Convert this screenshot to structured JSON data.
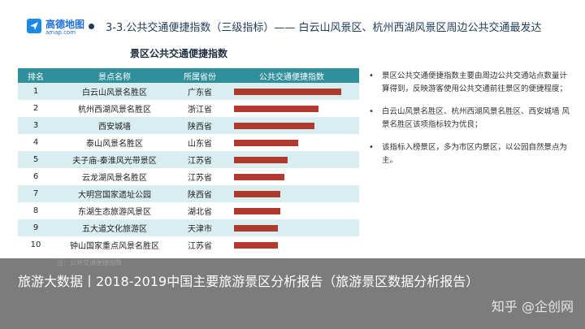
{
  "header": {
    "logo_name": "高德地图",
    "logo_domain": "amap.com",
    "title": "3-3.公共交通便捷指数（三级指标）—— 白云山风景区、杭州西湖风景区周边公共交通最发达"
  },
  "table": {
    "title": "景区公共交通便捷指数",
    "headers": [
      "排名",
      "景点名称",
      "所属省份",
      "公共交通便捷指数"
    ],
    "rows": [
      {
        "rank": "1",
        "name": "白云山风景名胜区",
        "province": "广东省",
        "value": 1.0
      },
      {
        "rank": "2",
        "name": "杭州西湖风景名胜区",
        "province": "浙江省",
        "value": 0.79
      },
      {
        "rank": "3",
        "name": "西安城墙",
        "province": "陕西省",
        "value": 0.75
      },
      {
        "rank": "4",
        "name": "泰山风景名胜区",
        "province": "山东省",
        "value": 0.6
      },
      {
        "rank": "5",
        "name": "夫子庙-秦淮风光带景区",
        "province": "江苏省",
        "value": 0.5
      },
      {
        "rank": "6",
        "name": "云龙湖风景名胜区",
        "province": "江苏省",
        "value": 0.47
      },
      {
        "rank": "7",
        "name": "大明宫国家遗址公园",
        "province": "陕西省",
        "value": 0.43
      },
      {
        "rank": "8",
        "name": "东湖生态旅游风景区",
        "province": "湖北省",
        "value": 0.43
      },
      {
        "rank": "9",
        "name": "五大道文化旅游区",
        "province": "天津市",
        "value": 0.41
      },
      {
        "rank": "10",
        "name": "钟山国家重点风景名胜区",
        "province": "江苏省",
        "value": 0.41
      }
    ]
  },
  "bullets": [
    "景区公共交通便捷指数主要由周边公共交通站点数量计算得到，反映游客使用公共交通前往景区的便捷程度；",
    "白云山风景名胜区、杭州西湖风景名胜区、西安城墙 风景名胜区该项指标较为优良；",
    "该指标入榜景区，多为市区内景区，以公园自然景点为主。"
  ],
  "caption": "旅游大数据丨2018-2019中国主要旅游景区分析报告（旅游景区数据分析报告）",
  "watermark": "知乎 @企创网",
  "footnote": "注：公共交通便捷指数"
}
